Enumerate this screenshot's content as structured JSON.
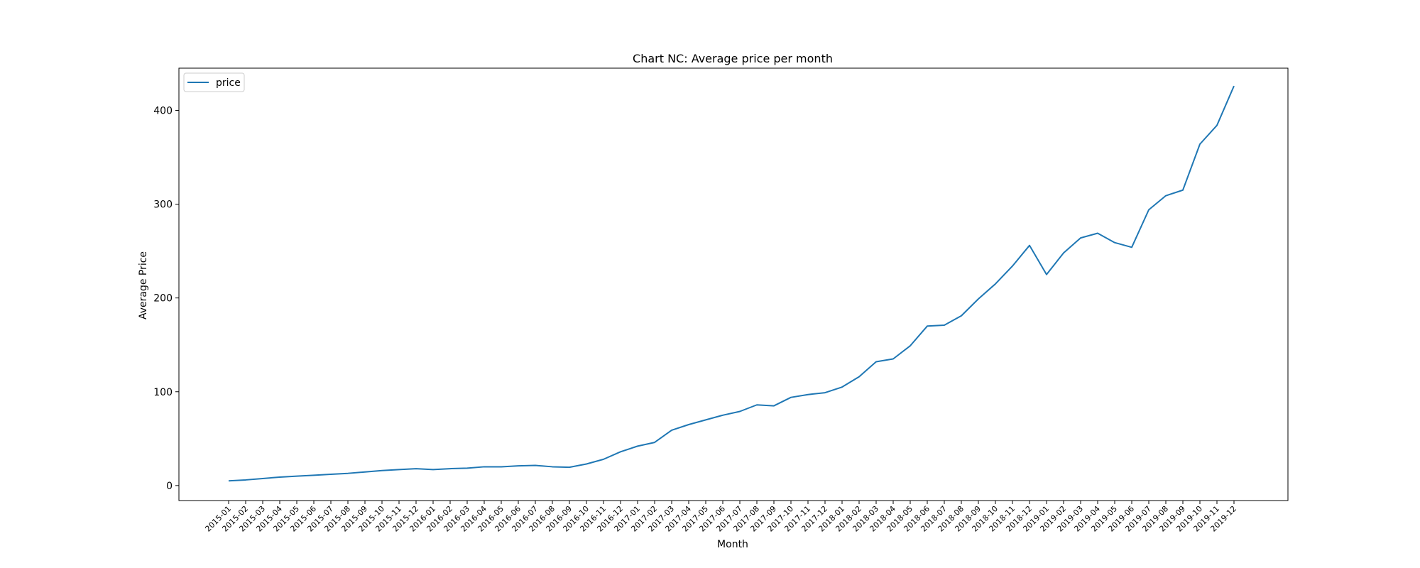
{
  "chart_data": {
    "type": "line",
    "title": "Chart NC: Average price per month",
    "xlabel": "Month",
    "ylabel": "Average Price",
    "categories": [
      "2015-01",
      "2015-02",
      "2015-03",
      "2015-04",
      "2015-05",
      "2015-06",
      "2015-07",
      "2015-08",
      "2015-09",
      "2015-10",
      "2015-11",
      "2015-12",
      "2016-01",
      "2016-02",
      "2016-03",
      "2016-04",
      "2016-05",
      "2016-06",
      "2016-07",
      "2016-08",
      "2016-09",
      "2016-10",
      "2016-11",
      "2016-12",
      "2017-01",
      "2017-02",
      "2017-03",
      "2017-04",
      "2017-05",
      "2017-06",
      "2017-07",
      "2017-08",
      "2017-09",
      "2017-10",
      "2017-11",
      "2017-12",
      "2018-01",
      "2018-02",
      "2018-03",
      "2018-04",
      "2018-05",
      "2018-06",
      "2018-07",
      "2018-08",
      "2018-09",
      "2018-10",
      "2018-11",
      "2018-12",
      "2019-01",
      "2019-02",
      "2019-03",
      "2019-04",
      "2019-05",
      "2019-06",
      "2019-07",
      "2019-08",
      "2019-09",
      "2019-10",
      "2019-11",
      "2019-12"
    ],
    "series": [
      {
        "name": "price",
        "color": "#1f77b4",
        "values": [
          5,
          6,
          7.5,
          9,
          10,
          11,
          12,
          13,
          14.5,
          16,
          17,
          18,
          17,
          18,
          18.5,
          20,
          20,
          21,
          21.5,
          20,
          19.5,
          23,
          28,
          36,
          42,
          46,
          59,
          65,
          70,
          75,
          79,
          86,
          85,
          94,
          97,
          99,
          105,
          116,
          132,
          135,
          149,
          170,
          171,
          181,
          199,
          215,
          234,
          256,
          225,
          248,
          264,
          269,
          259,
          254,
          294,
          309,
          315,
          364,
          384,
          426
        ]
      }
    ],
    "ylim": [
      -16,
      445
    ],
    "yticks": [
      0,
      100,
      200,
      300,
      400
    ],
    "grid": false,
    "legend": "upper-left"
  }
}
